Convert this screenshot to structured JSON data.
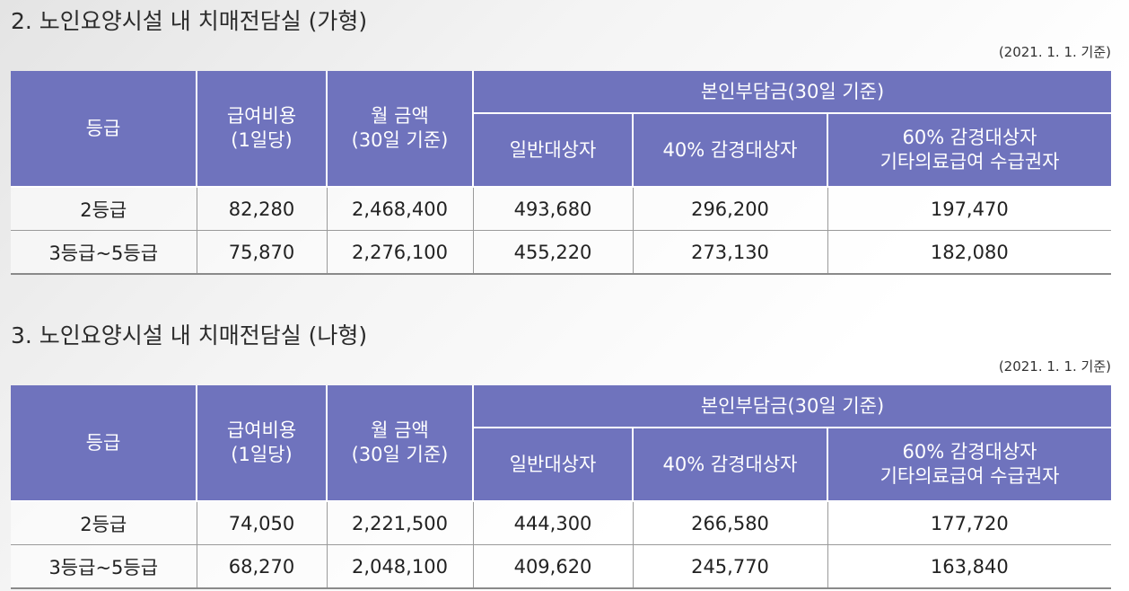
{
  "sections": [
    {
      "title": "2. 노인요양시설 내 치매전담실 (가형)",
      "date_note": "(2021. 1. 1. 기준)",
      "headers": {
        "grade": "등급",
        "daily_cost_line1": "급여비용",
        "daily_cost_line2": "(1일당)",
        "monthly_line1": "월 금액",
        "monthly_line2": "(30일 기준)",
        "copay_group": "본인부담금(30일 기준)",
        "general": "일반대상자",
        "reduced40": "40% 감경대상자",
        "reduced60_line1": "60% 감경대상자",
        "reduced60_line2": "기타의료급여 수급권자"
      },
      "rows": [
        {
          "grade": "2등급",
          "daily": "82,280",
          "monthly": "2,468,400",
          "general": "493,680",
          "reduced40": "296,200",
          "reduced60": "197,470"
        },
        {
          "grade": "3등급~5등급",
          "daily": "75,870",
          "monthly": "2,276,100",
          "general": "455,220",
          "reduced40": "273,130",
          "reduced60": "182,080"
        }
      ]
    },
    {
      "title": "3. 노인요양시설 내 치매전담실 (나형)",
      "date_note": "(2021. 1. 1. 기준)",
      "headers": {
        "grade": "등급",
        "daily_cost_line1": "급여비용",
        "daily_cost_line2": "(1일당)",
        "monthly_line1": "월 금액",
        "monthly_line2": "(30일 기준)",
        "copay_group": "본인부담금(30일 기준)",
        "general": "일반대상자",
        "reduced40": "40% 감경대상자",
        "reduced60_line1": "60% 감경대상자",
        "reduced60_line2": "기타의료급여 수급권자"
      },
      "rows": [
        {
          "grade": "2등급",
          "daily": "74,050",
          "monthly": "2,221,500",
          "general": "444,300",
          "reduced40": "266,580",
          "reduced60": "177,720"
        },
        {
          "grade": "3등급~5등급",
          "daily": "68,270",
          "monthly": "2,048,100",
          "general": "409,620",
          "reduced40": "245,770",
          "reduced60": "163,840"
        }
      ]
    }
  ],
  "colors": {
    "header_bg": "#6f73bd",
    "header_text": "#ffffff"
  }
}
